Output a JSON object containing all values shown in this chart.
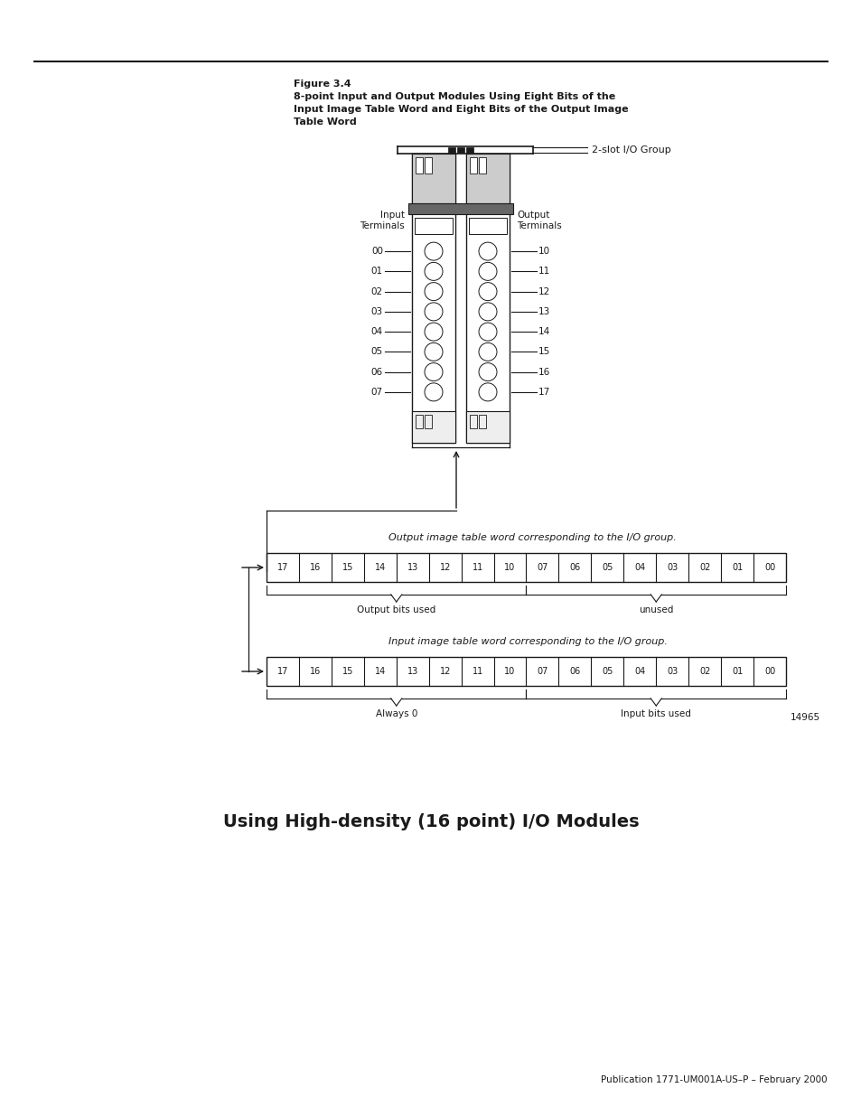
{
  "bg_color": "#ffffff",
  "text_color": "#1a1a1a",
  "figure_title": "Figure 3.4",
  "figure_subtitle": "8-point Input and Output Modules Using Eight Bits of the\nInput Image Table Word and Eight Bits of the Output Image\nTable Word",
  "label_2slot": "2-slot I/O Group",
  "label_input": "Input\nTerminals",
  "label_output": "Output\nTerminals",
  "input_labels": [
    "00",
    "01",
    "02",
    "03",
    "04",
    "05",
    "06",
    "07"
  ],
  "output_labels": [
    "10",
    "11",
    "12",
    "13",
    "14",
    "15",
    "16",
    "17"
  ],
  "output_word_label": "Output image table word corresponding to the I/O group.",
  "input_word_label": "Input image table word corresponding to the I/O group.",
  "bit_labels": [
    "17",
    "16",
    "15",
    "14",
    "13",
    "12",
    "11",
    "10",
    "07",
    "06",
    "05",
    "04",
    "03",
    "02",
    "01",
    "00"
  ],
  "output_brace_left_label": "Output bits used",
  "output_brace_right_label": "unused",
  "input_brace_left_label": "Always 0",
  "input_brace_right_label": "Input bits used",
  "figure_number": "14965",
  "section_heading": "Using High-density (16 point) I/O Modules",
  "publication": "Publication 1771-UM001A-US–P – February 2000"
}
